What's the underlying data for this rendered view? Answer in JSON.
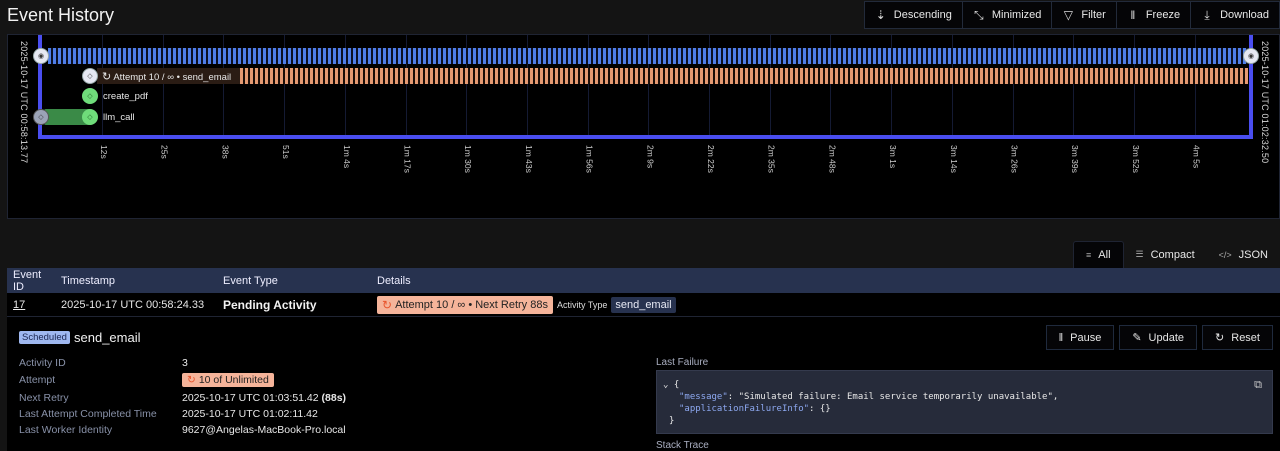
{
  "header": {
    "title": "Event History"
  },
  "toolbar": {
    "buttons": [
      {
        "label": "Descending",
        "icon": "sort-descending-icon",
        "glyph": "⇣"
      },
      {
        "label": "Minimized",
        "icon": "minimize-icon",
        "glyph": "⤡"
      },
      {
        "label": "Filter",
        "icon": "filter-icon",
        "glyph": "▽"
      },
      {
        "label": "Freeze",
        "icon": "pause-icon",
        "glyph": "‖"
      },
      {
        "label": "Download",
        "icon": "download-icon",
        "glyph": "⤓"
      }
    ]
  },
  "timeline": {
    "start_label": "2025-10-17 UTC 00:58:13.77",
    "end_label": "2025-10-17 UTC 01:02:32.50",
    "ticks": [
      "12s",
      "25s",
      "38s",
      "51s",
      "1m 4s",
      "1m 17s",
      "1m 30s",
      "1m 43s",
      "1m 56s",
      "2m 9s",
      "2m 22s",
      "2m 35s",
      "2m 48s",
      "3m 1s",
      "3m 14s",
      "3m 26s",
      "3m 39s",
      "3m 52s",
      "4m 5s"
    ],
    "rows": [
      {
        "label": "Attempt 10 / ∞ • send_email",
        "status": "retrying",
        "color": "#e59a72"
      },
      {
        "label": "create_pdf",
        "status": "completed",
        "color": "#6fdc7a"
      },
      {
        "label": "llm_call",
        "status": "completed",
        "color": "#3a8a47"
      }
    ],
    "main_bar_color": "#4f7ee8",
    "frame_color": "#4a4ef0"
  },
  "view_tabs": [
    {
      "label": "All",
      "glyph": "≡",
      "active": true
    },
    {
      "label": "Compact",
      "glyph": "☰",
      "active": false
    },
    {
      "label": "JSON",
      "glyph": "</>",
      "active": false
    }
  ],
  "table": {
    "headers": [
      "Event ID",
      "Timestamp",
      "Event Type",
      "Details"
    ],
    "rows": [
      {
        "event_id": "17",
        "timestamp": "2025-10-17 UTC 00:58:24.33",
        "event_type": "Pending Activity",
        "retry_badge": "Attempt 10 / ∞ • Next Retry 88s",
        "activity_type_label": "Activity Type",
        "activity_type": "send_email"
      }
    ]
  },
  "detail": {
    "status_badge": "Scheduled",
    "activity_name": "send_email",
    "fields": [
      {
        "key": "Activity ID",
        "value": "3"
      },
      {
        "key": "Attempt",
        "value": "10 of Unlimited"
      },
      {
        "key": "Next Retry",
        "value": "2025-10-17 UTC 01:03:51.42",
        "extra": "(88s)"
      },
      {
        "key": "Last Attempt Completed Time",
        "value": "2025-10-17 UTC 01:02:11.42"
      },
      {
        "key": "Last Worker Identity",
        "value": "9627@Angelas-MacBook-Pro.local"
      }
    ],
    "actions": [
      {
        "label": "Pause",
        "glyph": "‖"
      },
      {
        "label": "Update",
        "glyph": "✎"
      },
      {
        "label": "Reset",
        "glyph": "↻"
      }
    ],
    "last_failure_label": "Last Failure",
    "last_failure": {
      "message_key": "\"message\"",
      "message_value": "\"Simulated failure: Email service temporarily unavailable\",",
      "info_key": "\"applicationFailureInfo\"",
      "info_value": "{}"
    },
    "stack_trace_label": "Stack Trace"
  }
}
